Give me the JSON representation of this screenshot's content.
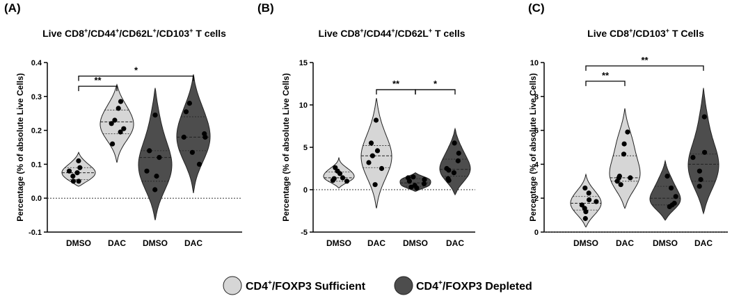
{
  "figure": {
    "legend": [
      {
        "pre": "CD4",
        "sup": "+",
        "post": "/FOXP3 Sufficient",
        "color": "#d6d6d6"
      },
      {
        "pre": "CD4",
        "sup": "+",
        "post": "/FOXP3 Depleted",
        "color": "#4d4d4d"
      }
    ]
  },
  "chart_data": [
    {
      "type": "violin",
      "panel_label": "(A)",
      "title_parts": [
        {
          "t": "Live CD8",
          "sup": false
        },
        {
          "t": "+",
          "sup": true
        },
        {
          "t": "/CD44",
          "sup": false
        },
        {
          "t": "+",
          "sup": true
        },
        {
          "t": "/CD62L",
          "sup": false
        },
        {
          "t": "+",
          "sup": true
        },
        {
          "t": "/CD103",
          "sup": false
        },
        {
          "t": "+",
          "sup": true
        },
        {
          "t": " T cells",
          "sup": false
        }
      ],
      "ylabel": "Percentage (% of absolute Live Cells)",
      "ylim": [
        -0.1,
        0.4
      ],
      "yticks": [
        -0.1,
        0.0,
        0.1,
        0.2,
        0.3,
        0.4
      ],
      "ytick_labels": [
        "-0.1",
        "0.0",
        "0.1",
        "0.2",
        "0.3",
        "0.4"
      ],
      "zero_line": 0,
      "categories": [
        "DMSO",
        "DAC",
        "DMSO",
        "DAC"
      ],
      "groups": [
        {
          "name": "DMSO",
          "condition": "Sufficient",
          "fill": "#d6d6d6",
          "points": [
            0.11,
            0.09,
            0.08,
            0.065,
            0.075,
            0.05,
            0.05
          ],
          "median": 0.075,
          "quartiles": [
            0.055,
            0.09
          ],
          "range": [
            0.035,
            0.135
          ]
        },
        {
          "name": "DAC",
          "condition": "Sufficient",
          "fill": "#d6d6d6",
          "points": [
            0.285,
            0.265,
            0.23,
            0.22,
            0.205,
            0.195,
            0.16
          ],
          "median": 0.225,
          "quartiles": [
            0.19,
            0.26
          ],
          "range": [
            0.105,
            0.335
          ]
        },
        {
          "name": "DMSO",
          "condition": "Depleted",
          "fill": "#4d4d4d",
          "points": [
            0.245,
            0.14,
            0.12,
            0.08,
            0.065,
            0.025
          ],
          "median": 0.12,
          "quartiles": [
            0.05,
            0.14
          ],
          "range": [
            -0.065,
            0.325
          ]
        },
        {
          "name": "DAC",
          "condition": "Depleted",
          "fill": "#4d4d4d",
          "points": [
            0.28,
            0.255,
            0.19,
            0.18,
            0.18,
            0.135,
            0.1
          ],
          "median": 0.18,
          "quartiles": [
            0.14,
            0.24
          ],
          "range": [
            0.015,
            0.365
          ]
        }
      ],
      "comparisons": [
        {
          "from": 0,
          "to": 1,
          "y": 0.33,
          "label": "**"
        },
        {
          "from": 0,
          "to": 3,
          "y": 0.36,
          "label": "*"
        }
      ]
    },
    {
      "type": "violin",
      "panel_label": "(B)",
      "title_parts": [
        {
          "t": "Live CD8",
          "sup": false
        },
        {
          "t": "+",
          "sup": true
        },
        {
          "t": "/CD44",
          "sup": false
        },
        {
          "t": "+",
          "sup": true
        },
        {
          "t": "/CD62L",
          "sup": false
        },
        {
          "t": "+",
          "sup": true
        },
        {
          "t": " T cells",
          "sup": false
        }
      ],
      "ylabel": "Percentage (% of absolute Live Cells)",
      "ylim": [
        -5,
        15
      ],
      "yticks": [
        -5,
        0,
        5,
        10,
        15
      ],
      "ytick_labels": [
        "-5",
        "0",
        "5",
        "10",
        "15"
      ],
      "zero_line": 0,
      "categories": [
        "DMSO",
        "DAC",
        "DMSO",
        "DAC"
      ],
      "groups": [
        {
          "name": "DMSO",
          "condition": "Sufficient",
          "fill": "#d6d6d6",
          "points": [
            2.6,
            2.2,
            1.9,
            1.4,
            1.3,
            1.1,
            1.0
          ],
          "median": 1.4,
          "quartiles": [
            1.0,
            2.1
          ],
          "range": [
            0.2,
            3.8
          ]
        },
        {
          "name": "DAC",
          "condition": "Sufficient",
          "fill": "#d6d6d6",
          "points": [
            8.2,
            5.5,
            4.6,
            4.0,
            3.2,
            2.5,
            0.6
          ],
          "median": 4.0,
          "quartiles": [
            2.6,
            5.2
          ],
          "range": [
            -2.2,
            10.8
          ]
        },
        {
          "name": "DMSO",
          "condition": "Depleted",
          "fill": "#4d4d4d",
          "points": [
            1.5,
            1.4,
            1.2,
            1.0,
            0.7,
            0.5,
            0.3,
            0.2
          ],
          "median": 0.8,
          "quartiles": [
            0.4,
            1.3
          ],
          "range": [
            -0.2,
            2.0
          ]
        },
        {
          "name": "DAC",
          "condition": "Depleted",
          "fill": "#4d4d4d",
          "points": [
            5.5,
            4.3,
            3.4,
            2.5,
            2.3,
            2.0,
            1.3,
            1.1
          ],
          "median": 2.4,
          "quartiles": [
            1.6,
            3.6
          ],
          "range": [
            -0.6,
            7.2
          ]
        }
      ],
      "comparisons": [
        {
          "from": 1,
          "to": 2,
          "y": 11.8,
          "label": "**"
        },
        {
          "from": 2,
          "to": 3,
          "y": 11.8,
          "label": "*"
        }
      ]
    },
    {
      "type": "violin",
      "panel_label": "(C)",
      "title_parts": [
        {
          "t": "Live CD8",
          "sup": false
        },
        {
          "t": "+",
          "sup": true
        },
        {
          "t": "/CD103",
          "sup": false
        },
        {
          "t": "+",
          "sup": true
        },
        {
          "t": " T Cells",
          "sup": false
        }
      ],
      "ylabel": "Percentage (% of absolute Live Cells)",
      "ylim": [
        0,
        10
      ],
      "yticks": [
        0,
        2,
        4,
        6,
        8,
        10
      ],
      "ytick_labels": [
        "0",
        "2",
        "4",
        "6",
        "8",
        "10"
      ],
      "zero_line": 0,
      "categories": [
        "DMSO",
        "DAC",
        "DMSO",
        "DAC"
      ],
      "groups": [
        {
          "name": "DMSO",
          "condition": "Sufficient",
          "fill": "#d6d6d6",
          "points": [
            2.6,
            2.3,
            1.9,
            1.8,
            1.6,
            1.4,
            1.2,
            0.8
          ],
          "median": 1.7,
          "quartiles": [
            1.3,
            2.1
          ],
          "range": [
            0.3,
            3.4
          ]
        },
        {
          "name": "DAC",
          "condition": "Sufficient",
          "fill": "#d6d6d6",
          "points": [
            5.9,
            5.2,
            4.6,
            3.3,
            3.2,
            3.2,
            3.0,
            2.8
          ],
          "median": 3.2,
          "quartiles": [
            3.0,
            4.5
          ],
          "range": [
            1.4,
            7.3
          ]
        },
        {
          "name": "DMSO",
          "condition": "Depleted",
          "fill": "#4d4d4d",
          "points": [
            3.3,
            2.6,
            2.1,
            1.7,
            1.6,
            1.5
          ],
          "median": 2.0,
          "quartiles": [
            1.6,
            2.7
          ],
          "range": [
            0.7,
            4.2
          ]
        },
        {
          "name": "DAC",
          "condition": "Depleted",
          "fill": "#4d4d4d",
          "points": [
            6.8,
            4.7,
            4.4,
            3.6,
            3.1,
            2.7
          ],
          "median": 4.0,
          "quartiles": [
            3.0,
            4.6
          ],
          "range": [
            1.1,
            8.5
          ]
        }
      ],
      "comparisons": [
        {
          "from": 0,
          "to": 1,
          "y": 8.9,
          "label": "**"
        },
        {
          "from": 0,
          "to": 3,
          "y": 9.8,
          "label": "**"
        }
      ]
    }
  ]
}
